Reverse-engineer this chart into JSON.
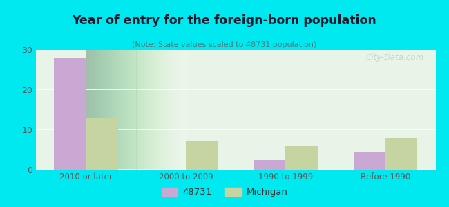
{
  "title": "Year of entry for the foreign-born population",
  "subtitle": "(Note: State values scaled to 48731 population)",
  "categories": [
    "2010 or later",
    "2000 to 2009",
    "1990 to 1999",
    "Before 1990"
  ],
  "values_48731": [
    28,
    0,
    2.5,
    4.5
  ],
  "values_michigan": [
    13,
    7,
    6,
    8
  ],
  "color_48731": "#c9a8d4",
  "color_michigan": "#c5d4a0",
  "background_outer": "#00e8f0",
  "background_inner_left": "#e8f5e8",
  "background_inner_right": "#f8fff8",
  "ylim": [
    0,
    30
  ],
  "yticks": [
    0,
    10,
    20,
    30
  ],
  "bar_width": 0.32,
  "legend_label_48731": "48731",
  "legend_label_michigan": "Michigan",
  "watermark": "City-Data.com",
  "title_color": "#1a1a2e",
  "subtitle_color": "#4a7a7a",
  "tick_color": "#555555"
}
